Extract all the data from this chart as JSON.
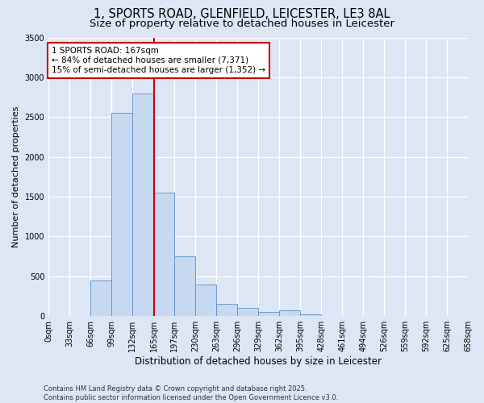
{
  "title": "1, SPORTS ROAD, GLENFIELD, LEICESTER, LE3 8AL",
  "subtitle": "Size of property relative to detached houses in Leicester",
  "xlabel": "Distribution of detached houses by size in Leicester",
  "ylabel": "Number of detached properties",
  "property_label": "1 SPORTS ROAD: 167sqm",
  "annotation_line1": "← 84% of detached houses are smaller (7,371)",
  "annotation_line2": "15% of semi-detached houses are larger (1,352) →",
  "bin_edges": [
    0,
    33,
    66,
    99,
    132,
    165,
    197,
    230,
    263,
    296,
    329,
    362,
    395,
    428,
    461,
    494,
    526,
    559,
    592,
    625,
    658
  ],
  "bin_labels": [
    "0sqm",
    "33sqm",
    "66sqm",
    "99sqm",
    "132sqm",
    "165sqm",
    "197sqm",
    "230sqm",
    "263sqm",
    "296sqm",
    "329sqm",
    "362sqm",
    "395sqm",
    "428sqm",
    "461sqm",
    "494sqm",
    "526sqm",
    "559sqm",
    "592sqm",
    "625sqm",
    "658sqm"
  ],
  "bar_values": [
    5,
    5,
    450,
    2550,
    2800,
    1550,
    750,
    400,
    150,
    100,
    50,
    70,
    20,
    5,
    5,
    2,
    2,
    1,
    1,
    1
  ],
  "bar_color": "#c6d9f0",
  "bar_edge_color": "#5b8fc9",
  "vline_color": "#cc0000",
  "vline_x": 165,
  "ylim": [
    0,
    3500
  ],
  "yticks": [
    0,
    500,
    1000,
    1500,
    2000,
    2500,
    3000,
    3500
  ],
  "bg_color": "#dce6f5",
  "grid_color": "#ffffff",
  "annotation_box_color": "#ffffff",
  "annotation_box_edge": "#cc0000",
  "footer_line1": "Contains HM Land Registry data © Crown copyright and database right 2025.",
  "footer_line2": "Contains public sector information licensed under the Open Government Licence v3.0.",
  "title_fontsize": 10.5,
  "subtitle_fontsize": 9.5,
  "ylabel_fontsize": 8,
  "xlabel_fontsize": 8.5,
  "tick_fontsize": 7,
  "annotation_fontsize": 7.5,
  "footer_fontsize": 6.0
}
